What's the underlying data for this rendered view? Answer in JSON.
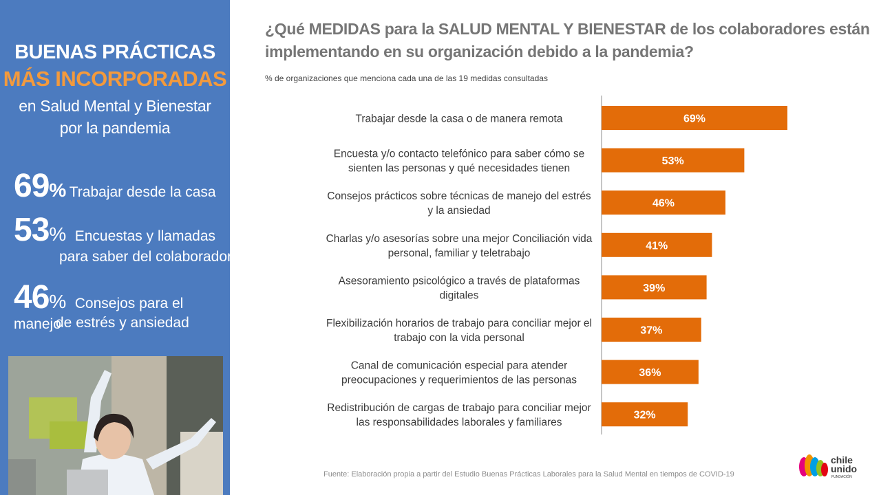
{
  "left_panel": {
    "title_line1": "BUENAS PRÁCTICAS",
    "title_line2": "MÁS INCORPORADAS",
    "subtitle_line1": "en Salud Mental y Bienestar",
    "subtitle_line2": "por la pandemia",
    "stats": [
      {
        "value": "69",
        "pct": "%",
        "text1": "Trabajar desde la casa",
        "text2": ""
      },
      {
        "value": "53",
        "pct": "%",
        "text1": "Encuestas y llamadas",
        "text2": "para saber del colaborador"
      },
      {
        "value": "46",
        "pct": "%",
        "text1": "Consejos para el manejo",
        "text2": "de estrés y ansiedad"
      }
    ]
  },
  "headline_line1": "¿Qué MEDIDAS para la SALUD MENTAL Y BIENESTAR de los colaboradores están",
  "headline_line2": "implementando en su organización debido a la pandemia?",
  "subtitle": "% de organizaciones que menciona cada una de las 19  medidas consultadas",
  "footer": "Fuente: Elaboración propia a partir del Estudio Buenas Prácticas Laborales para la Salud Mental en tiempos de COVID-19",
  "logo": {
    "line1": "chile",
    "line2": "unido",
    "line3": "FUNDACIÓN"
  },
  "colors": {
    "panel": "#4c7bbf",
    "accent": "#f39a3d",
    "bar": "#e36c09",
    "text_gray": "#767676"
  },
  "chart_data": {
    "type": "bar",
    "orientation": "horizontal",
    "categories": [
      [
        "Trabajar desde la casa o de manera remota"
      ],
      [
        "Encuesta y/o contacto telefónico para saber cómo se",
        "sienten las personas y qué necesidades tienen"
      ],
      [
        "Consejos prácticos sobre técnicas de manejo del estrés",
        "y la ansiedad"
      ],
      [
        "Charlas y/o asesorías sobre una mejor Conciliación vida",
        "personal, familiar y teletrabajo"
      ],
      [
        "Asesoramiento psicológico a través de plataformas",
        "digitales"
      ],
      [
        "Flexibilización horarios de trabajo para conciliar mejor el",
        "trabajo con la vida personal"
      ],
      [
        "Canal de comunicación especial para atender",
        "preocupaciones y requerimientos de las personas"
      ],
      [
        "Redistribución de cargas de trabajo para conciliar mejor",
        "las responsabilidades laborales y familiares"
      ]
    ],
    "values": [
      69,
      53,
      46,
      41,
      39,
      37,
      36,
      32
    ],
    "data_labels": [
      "69%",
      "53%",
      "46%",
      "41%",
      "39%",
      "37%",
      "36%",
      "32%"
    ],
    "xlim": [
      0,
      100
    ],
    "grid": false,
    "legend": "none"
  }
}
